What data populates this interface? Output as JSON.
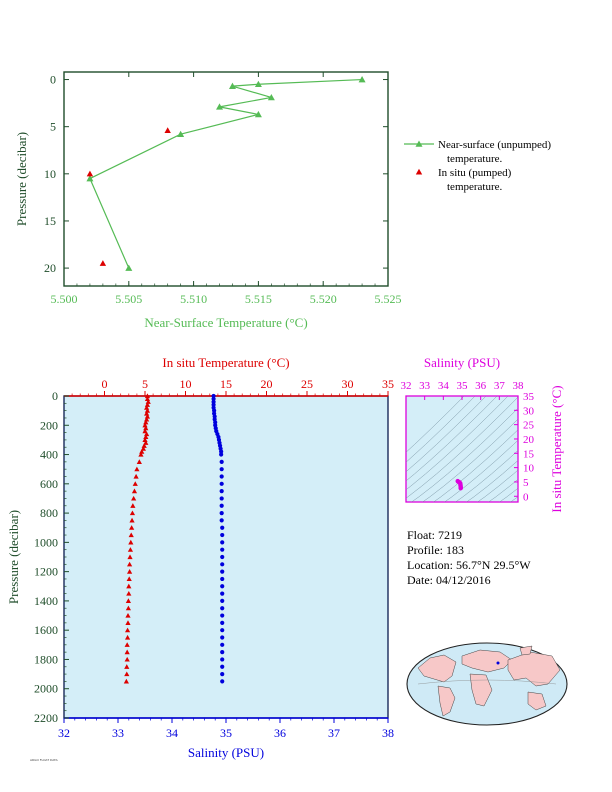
{
  "colors": {
    "green": "#55bb55",
    "axis_dark": "#1f4d2a",
    "red": "#dd0000",
    "blue": "#0000dd",
    "magenta": "#dd00dd",
    "panel_fill": "#d4eef8",
    "land": "#f7c8c8",
    "ocean": "#cfeaf6"
  },
  "info": {
    "float": "Float:  7219",
    "profile": "Profile:  183",
    "location": "Location:  56.7°N  29.5°W",
    "date": "Date:  04/12/2016"
  },
  "footer_text": "ARGO FLOAT DATA",
  "chart_data": [
    {
      "type": "line",
      "xlabel": "Near-Surface Temperature (°C)",
      "ylabel": "Pressure (decibar)",
      "xlim": [
        5.5,
        5.525
      ],
      "ylim": [
        0,
        20
      ],
      "y_inverted": true,
      "xticks": [
        "5.500",
        "5.505",
        "5.510",
        "5.515",
        "5.520",
        "5.525"
      ],
      "yticks": [
        "0",
        "5",
        "10",
        "15",
        "20"
      ],
      "legend_position": "right",
      "series": [
        {
          "name": "Near-surface (unpumped)",
          "name_line2": "temperature.",
          "style": "line-triangle",
          "points": [
            [
              5.523,
              0.0
            ],
            [
              5.515,
              0.5
            ],
            [
              5.513,
              0.7
            ],
            [
              5.516,
              1.9
            ],
            [
              5.512,
              2.9
            ],
            [
              5.515,
              3.7
            ],
            [
              5.509,
              5.8
            ],
            [
              5.502,
              10.5
            ],
            [
              5.505,
              20.0
            ]
          ]
        },
        {
          "name": "In situ (pumped)",
          "name_line2": "temperature.",
          "style": "triangle",
          "points": [
            [
              5.508,
              5.4
            ],
            [
              5.502,
              10.0
            ],
            [
              5.503,
              19.5
            ]
          ]
        }
      ]
    },
    {
      "type": "scatter",
      "top_xlabel": "In situ Temperature (°C)",
      "bottom_xlabel": "Salinity (PSU)",
      "ylabel": "Pressure (decibar)",
      "temperature_lim": [
        -5,
        35
      ],
      "salinity_lim": [
        32,
        38
      ],
      "pressure_lim": [
        0,
        2200
      ],
      "y_inverted": true,
      "temperature_ticks": [
        "0",
        "5",
        "10",
        "15",
        "20",
        "25",
        "30",
        "35"
      ],
      "salinity_ticks": [
        "32",
        "33",
        "34",
        "35",
        "36",
        "37",
        "38"
      ],
      "pressure_ticks": [
        "0",
        "200",
        "400",
        "600",
        "800",
        "1000",
        "1200",
        "1400",
        "1600",
        "1800",
        "2000",
        "2200"
      ],
      "temperature_profile": [
        [
          5.3,
          0
        ],
        [
          5.3,
          20
        ],
        [
          5.4,
          40
        ],
        [
          5.3,
          60
        ],
        [
          5.2,
          80
        ],
        [
          5.3,
          100
        ],
        [
          5.2,
          120
        ],
        [
          5.3,
          140
        ],
        [
          5.2,
          160
        ],
        [
          5.1,
          180
        ],
        [
          5.0,
          200
        ],
        [
          5.1,
          220
        ],
        [
          5.0,
          240
        ],
        [
          5.2,
          260
        ],
        [
          5.1,
          280
        ],
        [
          5.0,
          300
        ],
        [
          5.1,
          320
        ],
        [
          4.9,
          340
        ],
        [
          4.8,
          360
        ],
        [
          4.6,
          380
        ],
        [
          4.5,
          400
        ],
        [
          4.3,
          450
        ],
        [
          4.0,
          500
        ],
        [
          3.9,
          550
        ],
        [
          3.8,
          600
        ],
        [
          3.7,
          650
        ],
        [
          3.6,
          700
        ],
        [
          3.5,
          750
        ],
        [
          3.45,
          800
        ],
        [
          3.4,
          850
        ],
        [
          3.35,
          900
        ],
        [
          3.3,
          950
        ],
        [
          3.25,
          1000
        ],
        [
          3.2,
          1050
        ],
        [
          3.15,
          1100
        ],
        [
          3.1,
          1150
        ],
        [
          3.1,
          1200
        ],
        [
          3.05,
          1250
        ],
        [
          3.0,
          1300
        ],
        [
          3.0,
          1350
        ],
        [
          2.95,
          1400
        ],
        [
          2.95,
          1450
        ],
        [
          2.9,
          1500
        ],
        [
          2.9,
          1550
        ],
        [
          2.85,
          1600
        ],
        [
          2.85,
          1650
        ],
        [
          2.8,
          1700
        ],
        [
          2.8,
          1750
        ],
        [
          2.8,
          1800
        ],
        [
          2.75,
          1850
        ],
        [
          2.75,
          1900
        ],
        [
          2.7,
          1950
        ]
      ],
      "salinity_profile": [
        [
          34.77,
          0
        ],
        [
          34.77,
          20
        ],
        [
          34.77,
          40
        ],
        [
          34.77,
          60
        ],
        [
          34.77,
          80
        ],
        [
          34.78,
          100
        ],
        [
          34.78,
          120
        ],
        [
          34.79,
          140
        ],
        [
          34.79,
          160
        ],
        [
          34.8,
          180
        ],
        [
          34.8,
          200
        ],
        [
          34.81,
          220
        ],
        [
          34.82,
          240
        ],
        [
          34.84,
          260
        ],
        [
          34.86,
          280
        ],
        [
          34.87,
          300
        ],
        [
          34.88,
          320
        ],
        [
          34.89,
          340
        ],
        [
          34.9,
          360
        ],
        [
          34.91,
          380
        ],
        [
          34.91,
          400
        ],
        [
          34.92,
          450
        ],
        [
          34.92,
          500
        ],
        [
          34.92,
          550
        ],
        [
          34.92,
          600
        ],
        [
          34.92,
          650
        ],
        [
          34.92,
          700
        ],
        [
          34.92,
          750
        ],
        [
          34.92,
          800
        ],
        [
          34.92,
          850
        ],
        [
          34.93,
          900
        ],
        [
          34.93,
          950
        ],
        [
          34.93,
          1000
        ],
        [
          34.93,
          1050
        ],
        [
          34.93,
          1100
        ],
        [
          34.93,
          1150
        ],
        [
          34.93,
          1200
        ],
        [
          34.93,
          1250
        ],
        [
          34.93,
          1300
        ],
        [
          34.93,
          1350
        ],
        [
          34.93,
          1400
        ],
        [
          34.93,
          1450
        ],
        [
          34.93,
          1500
        ],
        [
          34.93,
          1550
        ],
        [
          34.93,
          1600
        ],
        [
          34.93,
          1650
        ],
        [
          34.93,
          1700
        ],
        [
          34.93,
          1750
        ],
        [
          34.93,
          1800
        ],
        [
          34.93,
          1850
        ],
        [
          34.93,
          1900
        ],
        [
          34.93,
          1950
        ]
      ]
    },
    {
      "type": "scatter",
      "top_xlabel": "Salinity (PSU)",
      "right_ylabel": "In situ Temperature (°C)",
      "salinity_lim": [
        32,
        38
      ],
      "temperature_lim": [
        -2,
        35
      ],
      "salinity_ticks": [
        "32",
        "33",
        "34",
        "35",
        "36",
        "37",
        "38"
      ],
      "temperature_ticks": [
        "0",
        "5",
        "10",
        "15",
        "20",
        "25",
        "30",
        "35"
      ],
      "points": [
        [
          34.77,
          5.3
        ],
        [
          34.8,
          5.1
        ],
        [
          34.86,
          4.9
        ],
        [
          34.9,
          4.6
        ],
        [
          34.91,
          4.4
        ],
        [
          34.92,
          4.0
        ],
        [
          34.92,
          3.7
        ],
        [
          34.93,
          3.4
        ],
        [
          34.93,
          3.1
        ],
        [
          34.93,
          2.9
        ],
        [
          34.93,
          2.8
        ]
      ]
    }
  ]
}
